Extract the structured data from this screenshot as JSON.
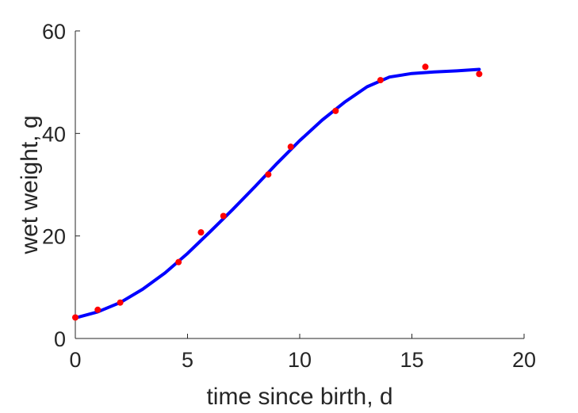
{
  "chart_data": {
    "type": "scatter",
    "xlabel": "time since birth, d",
    "ylabel": "wet weight, g",
    "xlim": [
      0,
      20
    ],
    "ylim": [
      0,
      60
    ],
    "xticks": [
      0,
      5,
      10,
      15,
      20
    ],
    "yticks": [
      0,
      20,
      40,
      60
    ],
    "grid": false,
    "series": [
      {
        "kind": "points",
        "color": "#ff0000",
        "x": [
          0,
          1,
          2,
          4.6,
          5.6,
          6.6,
          8.6,
          9.6,
          11.6,
          13.6,
          15.6,
          18
        ],
        "y": [
          4.1,
          5.6,
          7.0,
          14.9,
          20.7,
          23.9,
          32.0,
          37.4,
          44.4,
          50.4,
          53.0,
          51.6
        ]
      },
      {
        "kind": "line",
        "color": "#0000ff",
        "x": [
          0,
          1,
          2,
          3,
          4,
          5,
          6,
          7,
          8,
          9,
          10,
          11,
          12,
          13,
          14,
          15,
          16,
          17,
          18
        ],
        "y": [
          4.0,
          5.2,
          7.0,
          9.6,
          12.8,
          16.6,
          20.8,
          25.1,
          29.6,
          34.2,
          38.6,
          42.6,
          46.1,
          49.1,
          51.0,
          51.7,
          52.0,
          52.2,
          52.5
        ]
      }
    ]
  }
}
